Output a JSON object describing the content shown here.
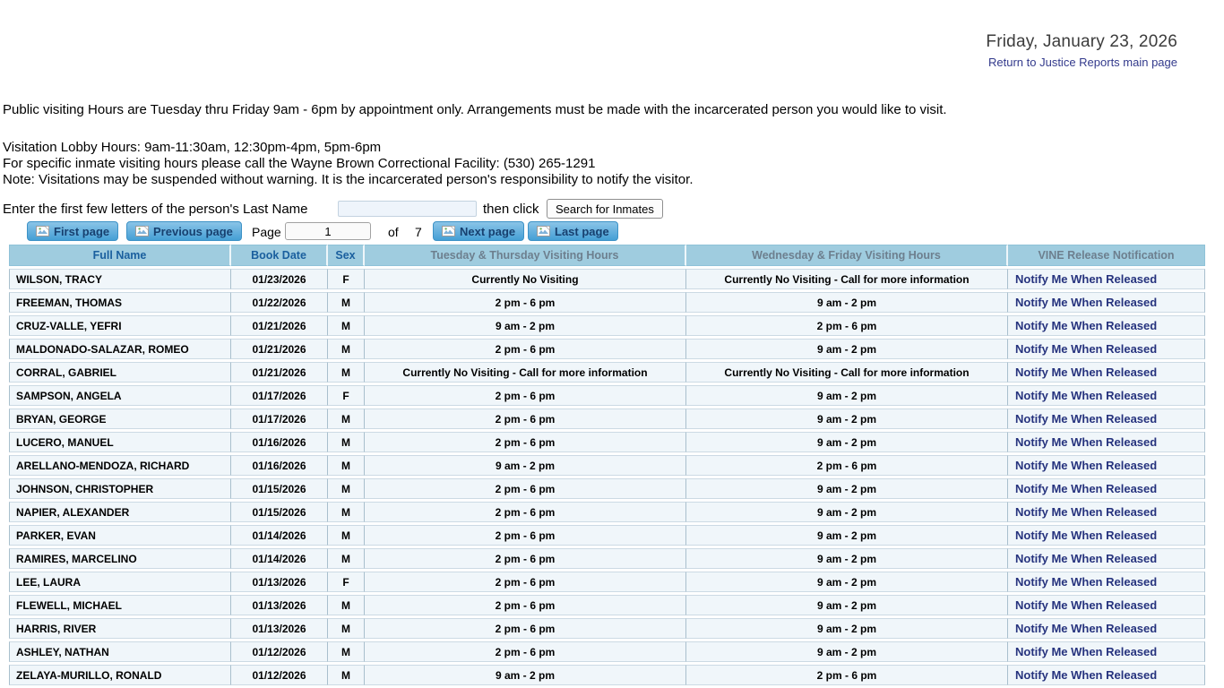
{
  "header": {
    "date": "Friday, January 23, 2026",
    "return_link": "Return to Justice Reports main page"
  },
  "notices": {
    "public_hours": "Public visiting Hours are Tuesday thru Friday 9am - 6pm by appointment only. Arrangements must be made with the incarcerated person you would like to visit.",
    "lobby_hours": "Visitation Lobby Hours: 9am-11:30am, 12:30pm-4pm, 5pm-6pm",
    "facility_phone": "For specific inmate visiting hours please call the Wayne Brown Correctional Facility: (530) 265-1291",
    "note": "Note: Visitations may be suspended without warning. It is the incarcerated person's responsibility to notify the visitor."
  },
  "search": {
    "prompt": "Enter the first few letters of the person's Last Name",
    "input_value": "",
    "then_click": "then click",
    "button_label": "Search for Inmates"
  },
  "pagination": {
    "first_label": "First page",
    "prev_label": "Previous page",
    "page_label": "Page",
    "current_page": "1",
    "of_label": "of",
    "total_pages": "7",
    "next_label": "Next page",
    "last_label": "Last page"
  },
  "table": {
    "columns": [
      "Full Name",
      "Book Date",
      "Sex",
      "Tuesday & Thursday Visiting Hours",
      "Wednesday & Friday Visiting Hours",
      "VINE Release Notification"
    ],
    "notify_label": "Notify Me When Released",
    "rows": [
      {
        "name": "WILSON, TRACY",
        "book_date": "01/23/2026",
        "sex": "F",
        "tue_thu": "Currently No Visiting",
        "wed_fri": "Currently No Visiting - Call for more information"
      },
      {
        "name": "FREEMAN, THOMAS",
        "book_date": "01/22/2026",
        "sex": "M",
        "tue_thu": "2 pm - 6 pm",
        "wed_fri": "9 am - 2 pm"
      },
      {
        "name": "CRUZ-VALLE, YEFRI",
        "book_date": "01/21/2026",
        "sex": "M",
        "tue_thu": "9 am - 2 pm",
        "wed_fri": "2 pm - 6 pm"
      },
      {
        "name": "MALDONADO-SALAZAR, ROMEO",
        "book_date": "01/21/2026",
        "sex": "M",
        "tue_thu": "2 pm - 6 pm",
        "wed_fri": "9 am - 2 pm"
      },
      {
        "name": "CORRAL, GABRIEL",
        "book_date": "01/21/2026",
        "sex": "M",
        "tue_thu": "Currently No Visiting - Call for more information",
        "wed_fri": "Currently No Visiting - Call for more information"
      },
      {
        "name": "SAMPSON, ANGELA",
        "book_date": "01/17/2026",
        "sex": "F",
        "tue_thu": "2 pm - 6 pm",
        "wed_fri": "9 am - 2 pm"
      },
      {
        "name": "BRYAN, GEORGE",
        "book_date": "01/17/2026",
        "sex": "M",
        "tue_thu": "2 pm - 6 pm",
        "wed_fri": "9 am - 2 pm"
      },
      {
        "name": "LUCERO, MANUEL",
        "book_date": "01/16/2026",
        "sex": "M",
        "tue_thu": "2 pm - 6 pm",
        "wed_fri": "9 am - 2 pm"
      },
      {
        "name": "ARELLANO-MENDOZA, RICHARD",
        "book_date": "01/16/2026",
        "sex": "M",
        "tue_thu": "9 am - 2 pm",
        "wed_fri": "2 pm - 6 pm"
      },
      {
        "name": "JOHNSON, CHRISTOPHER",
        "book_date": "01/15/2026",
        "sex": "M",
        "tue_thu": "2 pm - 6 pm",
        "wed_fri": "9 am - 2 pm"
      },
      {
        "name": "NAPIER, ALEXANDER",
        "book_date": "01/15/2026",
        "sex": "M",
        "tue_thu": "2 pm - 6 pm",
        "wed_fri": "9 am - 2 pm"
      },
      {
        "name": "PARKER, EVAN",
        "book_date": "01/14/2026",
        "sex": "M",
        "tue_thu": "2 pm - 6 pm",
        "wed_fri": "9 am - 2 pm"
      },
      {
        "name": "RAMIRES, MARCELINO",
        "book_date": "01/14/2026",
        "sex": "M",
        "tue_thu": "2 pm - 6 pm",
        "wed_fri": "9 am - 2 pm"
      },
      {
        "name": "LEE, LAURA",
        "book_date": "01/13/2026",
        "sex": "F",
        "tue_thu": "2 pm - 6 pm",
        "wed_fri": "9 am - 2 pm"
      },
      {
        "name": "FLEWELL, MICHAEL",
        "book_date": "01/13/2026",
        "sex": "M",
        "tue_thu": "2 pm - 6 pm",
        "wed_fri": "9 am - 2 pm"
      },
      {
        "name": "HARRIS, RIVER",
        "book_date": "01/13/2026",
        "sex": "M",
        "tue_thu": "2 pm - 6 pm",
        "wed_fri": "9 am - 2 pm"
      },
      {
        "name": "ASHLEY, NATHAN",
        "book_date": "01/12/2026",
        "sex": "M",
        "tue_thu": "2 pm - 6 pm",
        "wed_fri": "9 am - 2 pm"
      },
      {
        "name": "ZELAYA-MURILLO, RONALD",
        "book_date": "01/12/2026",
        "sex": "M",
        "tue_thu": "9 am - 2 pm",
        "wed_fri": "2 pm - 6 pm"
      }
    ]
  },
  "colors": {
    "header_bg": "#9fccdf",
    "header_link_text": "#1a5f9e",
    "header_gray_text": "#6d7f8e",
    "row_bg": "#f0f6fa",
    "button_blue_top": "#8ac4e7",
    "button_blue_bottom": "#459fd5",
    "button_text": "#17406f",
    "link_navy": "#26337e",
    "return_link": "#333a8c"
  }
}
